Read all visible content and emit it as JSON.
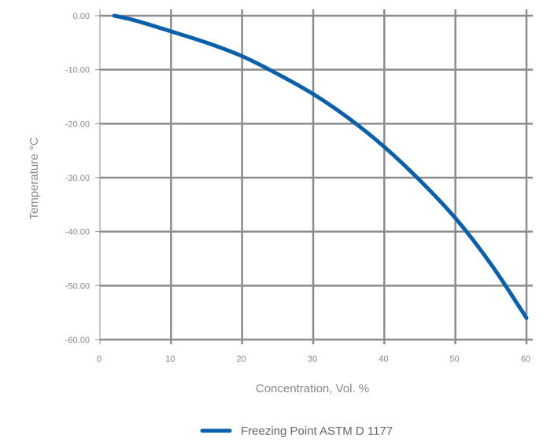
{
  "chart_data": {
    "type": "line",
    "title": "",
    "xlabel": "Concentration, Vol. %",
    "ylabel": "Temperature °C",
    "xlim": [
      0,
      60
    ],
    "ylim": [
      -60,
      0
    ],
    "x_ticks": [
      0,
      10,
      20,
      30,
      40,
      50,
      60
    ],
    "x_tick_labels": [
      "0",
      "10",
      "20",
      "30",
      "40",
      "50",
      "60"
    ],
    "y_ticks": [
      0,
      -10,
      -20,
      -30,
      -40,
      -50,
      -60
    ],
    "y_tick_labels": [
      "0.00",
      "-10.00",
      "-20.00",
      "-30.00",
      "-40.00",
      "-50.00",
      "-60.00"
    ],
    "grid": true,
    "legend_position": "bottom",
    "series": [
      {
        "name": "Freezing Point ASTM D 1177",
        "color": "#0a60ab",
        "x": [
          2,
          5,
          10,
          15,
          20,
          25,
          30,
          35,
          40,
          45,
          50,
          55,
          60
        ],
        "y": [
          0,
          -0.9,
          -2.9,
          -5,
          -7.5,
          -10.8,
          -14.5,
          -19,
          -24.3,
          -30.5,
          -37.5,
          -46,
          -56
        ]
      }
    ]
  }
}
